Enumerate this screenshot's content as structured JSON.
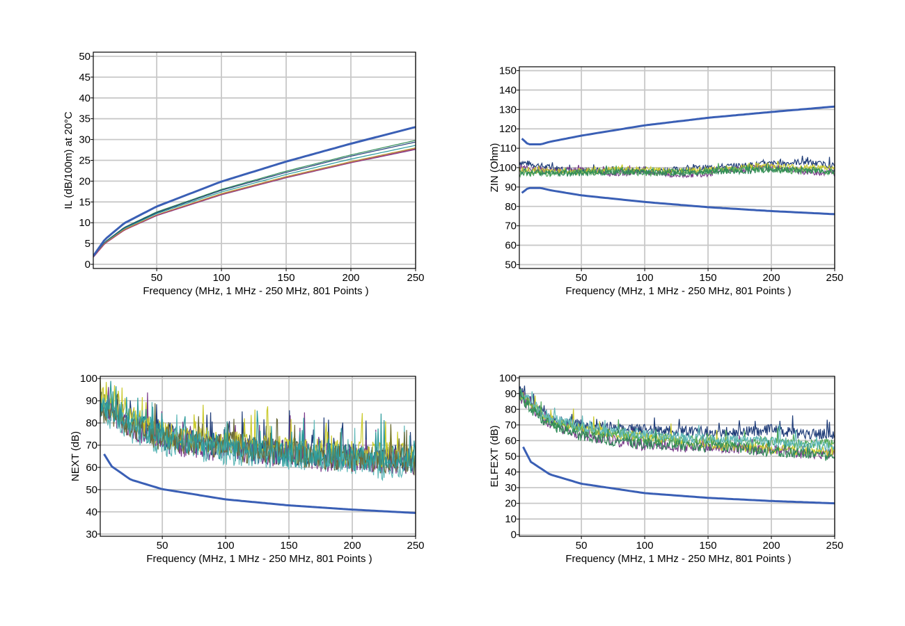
{
  "chart_data": [
    {
      "id": "il",
      "type": "line",
      "title": "",
      "xlabel": "Frequency (MHz, 1 MHz - 250 MHz, 801 Points )",
      "ylabel": "IL (dB/100m) at 20°C",
      "xlim": [
        1,
        250
      ],
      "ylim": [
        -1,
        51
      ],
      "x_ticks": [
        50,
        100,
        150,
        200,
        250
      ],
      "y_ticks": [
        0,
        5,
        10,
        15,
        20,
        25,
        30,
        35,
        40,
        45,
        50
      ],
      "grid": true,
      "limit_lines": [
        {
          "color": "#3a5fb5",
          "x": [
            1,
            10,
            25,
            50,
            100,
            150,
            200,
            250
          ],
          "y": [
            2.0,
            6.0,
            9.9,
            13.9,
            19.9,
            24.7,
            29.0,
            33.0
          ]
        }
      ],
      "series": [
        {
          "color": "#2f8a57",
          "x": [
            1,
            10,
            25,
            50,
            100,
            150,
            200,
            250
          ],
          "y": [
            1.8,
            5.4,
            8.9,
            12.6,
            18.0,
            22.4,
            26.3,
            29.8
          ]
        },
        {
          "color": "#1f3c78",
          "x": [
            1,
            10,
            25,
            50,
            100,
            150,
            200,
            250
          ],
          "y": [
            1.8,
            5.3,
            8.8,
            12.4,
            17.8,
            22.1,
            26.0,
            29.4
          ]
        },
        {
          "color": "#2a9a9a",
          "x": [
            1,
            10,
            25,
            50,
            100,
            150,
            200,
            250
          ],
          "y": [
            1.8,
            5.2,
            8.6,
            12.2,
            17.4,
            21.6,
            25.3,
            28.6
          ]
        },
        {
          "color": "#b8a030",
          "x": [
            1,
            10,
            25,
            50,
            100,
            150,
            200,
            250
          ],
          "y": [
            1.7,
            5.1,
            8.4,
            11.9,
            17.0,
            21.1,
            24.7,
            28.0
          ]
        },
        {
          "color": "#7a3a8a",
          "x": [
            1,
            10,
            25,
            50,
            100,
            150,
            200,
            250
          ],
          "y": [
            1.7,
            5.0,
            8.2,
            11.7,
            16.7,
            20.8,
            24.4,
            27.6
          ]
        },
        {
          "color": "#b04a6a",
          "x": [
            1,
            10,
            25,
            50,
            100,
            150,
            200,
            250
          ],
          "y": [
            1.7,
            5.0,
            8.2,
            11.8,
            16.8,
            20.9,
            24.5,
            27.8
          ]
        }
      ]
    },
    {
      "id": "zin",
      "type": "line",
      "title": "",
      "xlabel": "Frequency (MHz, 1 MHz - 250 MHz, 801 Points )",
      "ylabel": "ZIN (Ohm)",
      "xlim": [
        1,
        250
      ],
      "ylim": [
        48,
        152
      ],
      "x_ticks": [
        50,
        100,
        150,
        200,
        250
      ],
      "y_ticks": [
        50,
        60,
        70,
        80,
        90,
        100,
        110,
        120,
        130,
        140,
        150
      ],
      "grid": true,
      "limit_lines": [
        {
          "color": "#3a5fb5",
          "x": [
            3,
            8,
            18,
            25,
            50,
            100,
            150,
            200,
            250
          ],
          "y": [
            115,
            112,
            112,
            113.3,
            116.5,
            121.8,
            125.7,
            128.7,
            131.5
          ]
        },
        {
          "color": "#3a5fb5",
          "x": [
            3,
            8,
            18,
            25,
            50,
            100,
            150,
            200,
            250
          ],
          "y": [
            87,
            89.5,
            89.5,
            88.4,
            85.7,
            82.3,
            79.6,
            77.6,
            76
          ]
        }
      ],
      "series": [
        {
          "color": "#1f3c78",
          "x": [
            1,
            25,
            50,
            75,
            100,
            125,
            150,
            175,
            200,
            225,
            250
          ],
          "y": [
            103,
            100,
            98,
            99,
            98,
            99,
            100,
            101,
            102,
            103,
            101
          ]
        },
        {
          "color": "#7a3a8a",
          "x": [
            1,
            25,
            50,
            75,
            100,
            125,
            150,
            175,
            200,
            225,
            250
          ],
          "y": [
            100,
            98,
            99,
            97,
            98,
            96,
            97,
            99,
            100,
            98,
            97
          ]
        },
        {
          "color": "#c9c92a",
          "x": [
            1,
            25,
            50,
            75,
            100,
            125,
            150,
            175,
            200,
            225,
            250
          ],
          "y": [
            99,
            98,
            98,
            99,
            99,
            98,
            99,
            100,
            101,
            100,
            100
          ]
        },
        {
          "color": "#4fa85a",
          "x": [
            1,
            25,
            50,
            75,
            100,
            125,
            150,
            175,
            200,
            225,
            250
          ],
          "y": [
            97,
            97,
            98,
            98,
            97,
            98,
            98,
            99,
            99,
            98,
            98
          ]
        },
        {
          "color": "#2f8a57",
          "x": [
            1,
            25,
            50,
            75,
            100,
            125,
            150,
            175,
            200,
            225,
            250
          ],
          "y": [
            98,
            97,
            97,
            98,
            98,
            97,
            98,
            98,
            99,
            99,
            98
          ]
        }
      ]
    },
    {
      "id": "next",
      "type": "line",
      "title": "",
      "xlabel": "Frequency (MHz, 1 MHz - 250 MHz, 801 Points )",
      "ylabel": "NEXT (dB)",
      "xlim": [
        1,
        250
      ],
      "ylim": [
        29,
        101
      ],
      "x_ticks": [
        50,
        100,
        150,
        200,
        250
      ],
      "y_ticks": [
        30,
        40,
        50,
        60,
        70,
        80,
        90,
        100
      ],
      "grid": true,
      "limit_lines": [
        {
          "color": "#3a5fb5",
          "x": [
            4,
            10,
            25,
            50,
            100,
            150,
            200,
            250
          ],
          "y": [
            66,
            60.5,
            54.5,
            50.2,
            45.6,
            42.9,
            41.0,
            39.5
          ]
        }
      ],
      "series": [
        {
          "color": "#1f3c78",
          "x": [
            1,
            25,
            50,
            75,
            100,
            125,
            150,
            175,
            200,
            225,
            250
          ],
          "y": [
            90,
            80,
            74,
            72,
            70,
            68,
            67,
            66,
            65,
            64,
            63
          ]
        },
        {
          "color": "#7a3a8a",
          "x": [
            1,
            25,
            50,
            75,
            100,
            125,
            150,
            175,
            200,
            225,
            250
          ],
          "y": [
            88,
            78,
            72,
            70,
            68,
            67,
            66,
            64,
            64,
            63,
            62
          ]
        },
        {
          "color": "#c9c92a",
          "x": [
            1,
            25,
            50,
            75,
            100,
            125,
            150,
            175,
            200,
            225,
            250
          ],
          "y": [
            92,
            82,
            75,
            73,
            71,
            69,
            68,
            67,
            66,
            66,
            65
          ]
        },
        {
          "color": "#5fb8b8",
          "x": [
            1,
            25,
            50,
            75,
            100,
            125,
            150,
            175,
            200,
            225,
            250
          ],
          "y": [
            86,
            77,
            71,
            69,
            67,
            66,
            65,
            64,
            63,
            60,
            61
          ]
        },
        {
          "color": "#6b6b3a",
          "x": [
            1,
            25,
            50,
            75,
            100,
            125,
            150,
            175,
            200,
            225,
            250
          ],
          "y": [
            87,
            79,
            73,
            71,
            69,
            67,
            66,
            65,
            64,
            63,
            62
          ]
        },
        {
          "color": "#2a9a9a",
          "x": [
            1,
            25,
            50,
            75,
            100,
            125,
            150,
            175,
            200,
            225,
            250
          ],
          "y": [
            89,
            80,
            74,
            71,
            69,
            68,
            66,
            65,
            64,
            64,
            63
          ]
        }
      ]
    },
    {
      "id": "elfext",
      "type": "line",
      "title": "",
      "xlabel": "Frequency (MHz, 1 MHz - 250 MHz, 801 Points )",
      "ylabel": "ELFEXT (dB)",
      "xlim": [
        1,
        250
      ],
      "ylim": [
        -1,
        101
      ],
      "x_ticks": [
        50,
        100,
        150,
        200,
        250
      ],
      "y_ticks": [
        0,
        10,
        20,
        30,
        40,
        50,
        60,
        70,
        80,
        90,
        100
      ],
      "grid": true,
      "limit_lines": [
        {
          "color": "#3a5fb5",
          "x": [
            4,
            10,
            25,
            50,
            100,
            150,
            200,
            250
          ],
          "y": [
            56,
            46.5,
            38.5,
            32.5,
            26.5,
            23.5,
            21.5,
            20
          ]
        }
      ],
      "series": [
        {
          "color": "#1f3c78",
          "x": [
            1,
            25,
            50,
            75,
            100,
            125,
            150,
            175,
            200,
            225,
            250
          ],
          "y": [
            92,
            74,
            70,
            68,
            67,
            66,
            66,
            65,
            67,
            64,
            64
          ]
        },
        {
          "color": "#7a3a8a",
          "x": [
            1,
            25,
            50,
            75,
            100,
            125,
            150,
            175,
            200,
            225,
            250
          ],
          "y": [
            88,
            70,
            64,
            60,
            57,
            56,
            56,
            55,
            54,
            52,
            51
          ]
        },
        {
          "color": "#c9c92a",
          "x": [
            1,
            25,
            50,
            75,
            100,
            125,
            150,
            175,
            200,
            225,
            250
          ],
          "y": [
            90,
            73,
            68,
            65,
            62,
            60,
            58,
            56,
            55,
            54,
            53
          ]
        },
        {
          "color": "#4fa85a",
          "x": [
            1,
            25,
            50,
            75,
            100,
            125,
            150,
            175,
            200,
            225,
            250
          ],
          "y": [
            89,
            72,
            67,
            64,
            62,
            61,
            60,
            59,
            60,
            57,
            58
          ]
        },
        {
          "color": "#5fb8b8",
          "x": [
            1,
            25,
            50,
            75,
            100,
            125,
            150,
            175,
            200,
            225,
            250
          ],
          "y": [
            91,
            74,
            69,
            66,
            64,
            62,
            61,
            60,
            59,
            57,
            56
          ]
        },
        {
          "color": "#2f8a57",
          "x": [
            1,
            25,
            50,
            75,
            100,
            125,
            150,
            175,
            200,
            225,
            250
          ],
          "y": [
            87,
            70,
            63,
            60,
            58,
            57,
            56,
            55,
            53,
            52,
            50
          ]
        }
      ]
    }
  ]
}
